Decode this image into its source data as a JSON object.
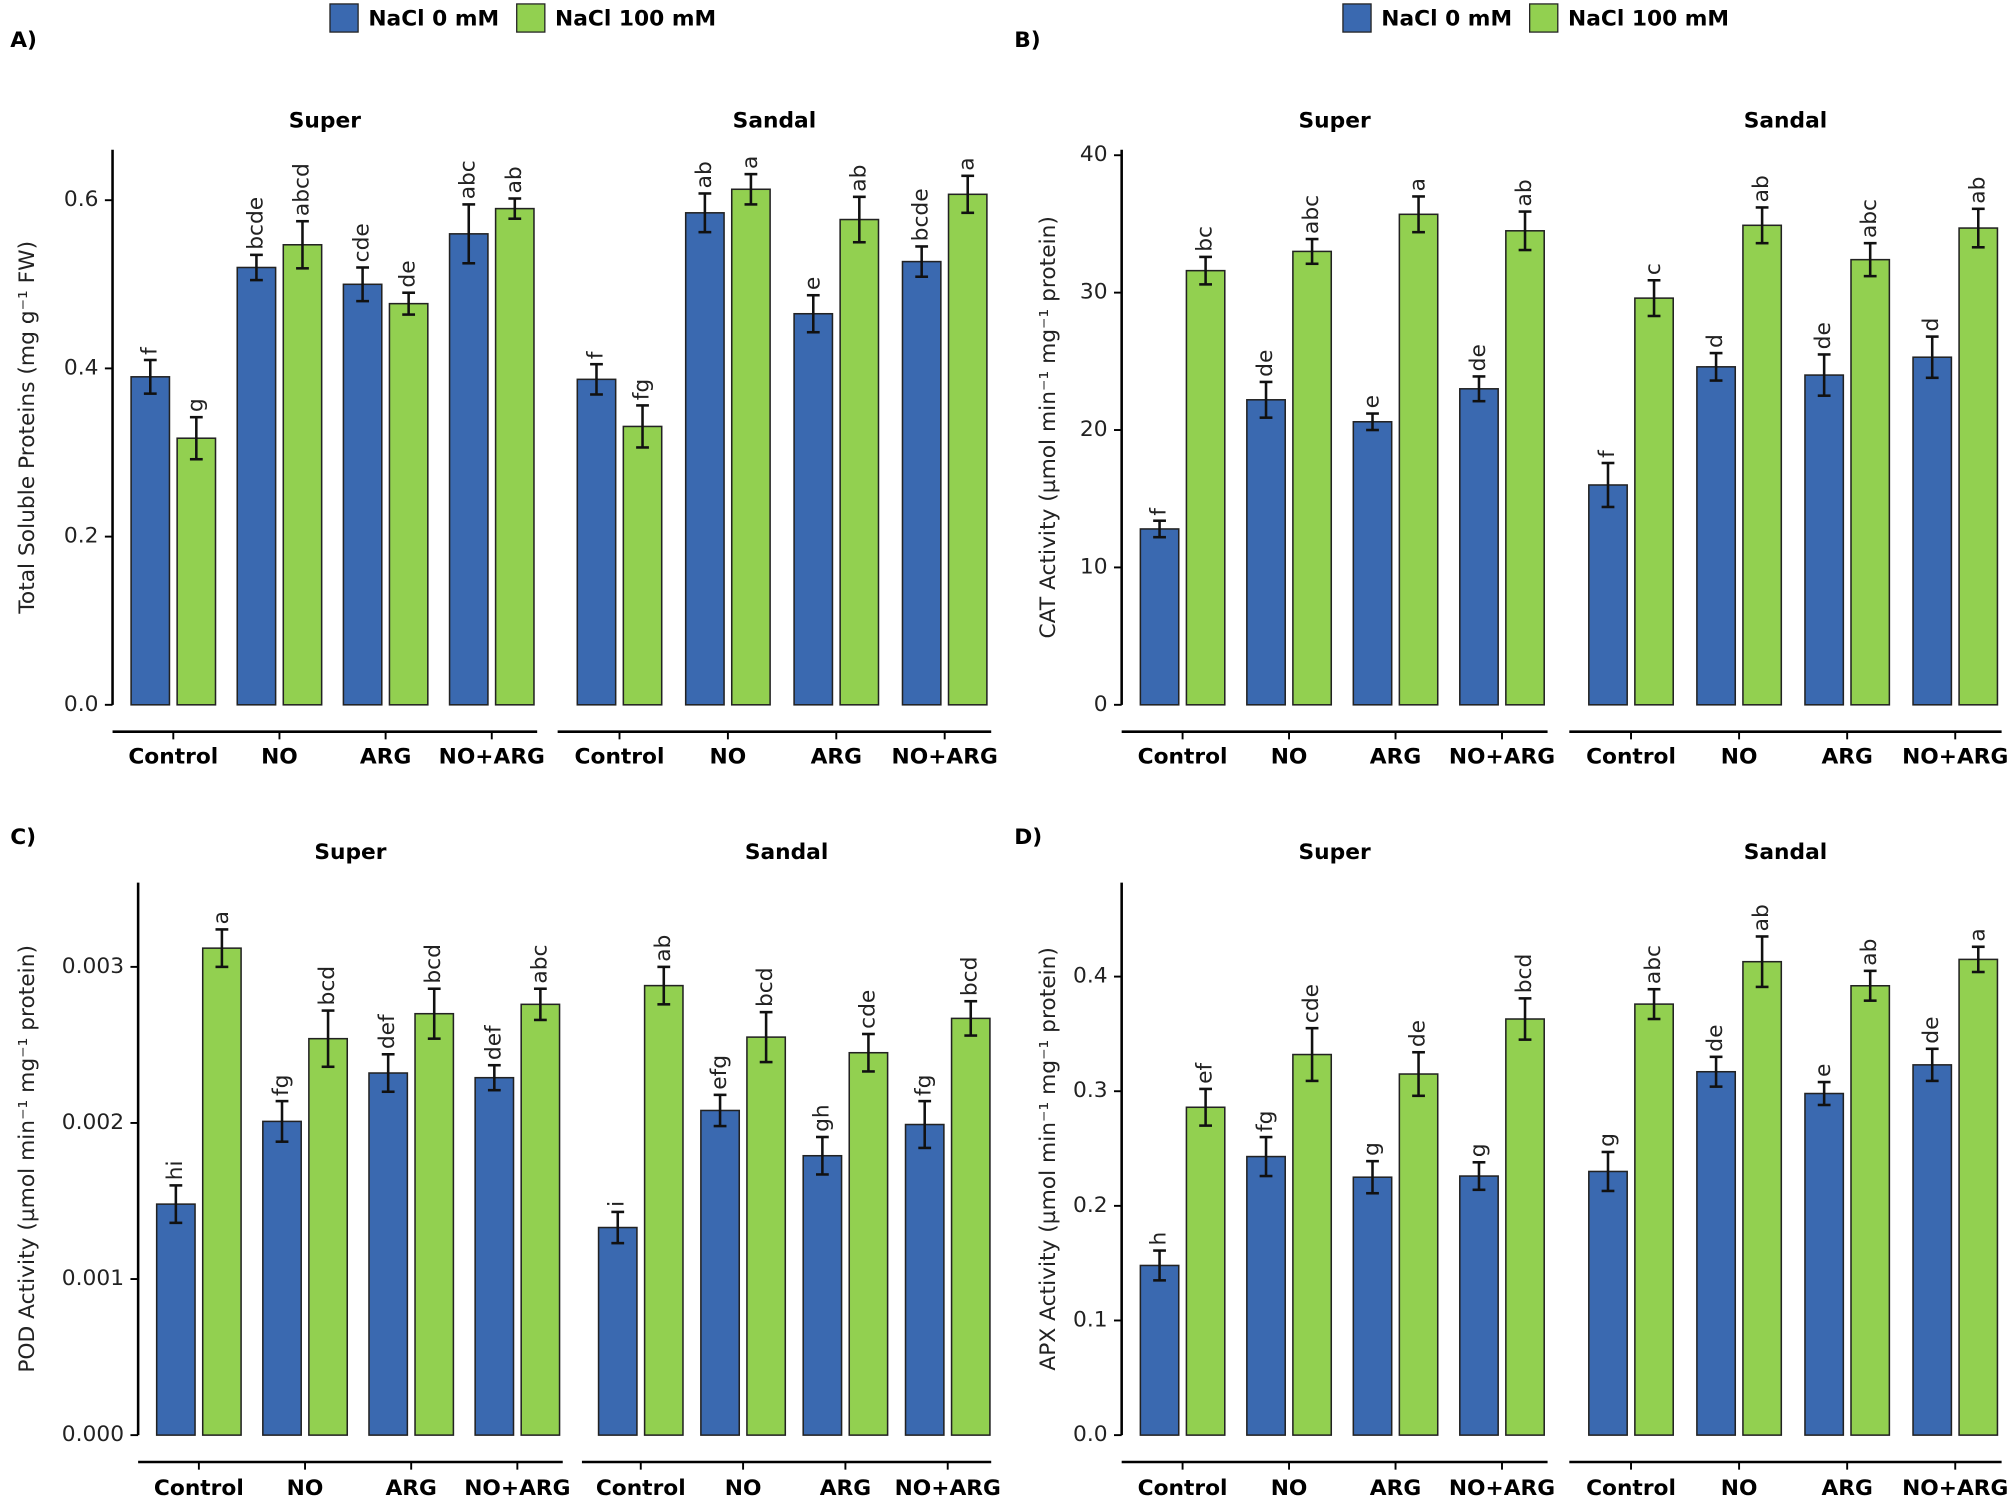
{
  "chart_data": [
    {
      "type": "bar",
      "panel_label": "A)",
      "ylabel": "Total Soluble Proteins (mg g⁻¹ FW)",
      "ylim": [
        0,
        0.66
      ],
      "yticks": [
        {
          "value": 0,
          "label": "0.0"
        },
        0.2,
        0.4,
        0.6
      ],
      "categories": [
        "Control",
        "NO",
        "ARG",
        "NO+ARG"
      ],
      "series": [
        {
          "name": "NaCl 0 mM",
          "color": "#3a69b0"
        },
        {
          "name": "NaCl 100 mM",
          "color": "#92d050"
        }
      ],
      "facets": [
        {
          "title": "Super",
          "values": [
            [
              0.39,
              0.52,
              0.5,
              0.56
            ],
            [
              0.317,
              0.547,
              0.477,
              0.59
            ]
          ],
          "errors": [
            [
              0.02,
              0.015,
              0.02,
              0.035
            ],
            [
              0.025,
              0.028,
              0.013,
              0.012
            ]
          ],
          "letters": [
            [
              "f",
              "bcde",
              "cde",
              "abc"
            ],
            [
              "g",
              "abcd",
              "de",
              "ab"
            ]
          ]
        },
        {
          "title": "Sandal",
          "values": [
            [
              0.387,
              0.585,
              0.465,
              0.527
            ],
            [
              0.331,
              0.613,
              0.577,
              0.607
            ]
          ],
          "errors": [
            [
              0.018,
              0.023,
              0.022,
              0.018
            ],
            [
              0.025,
              0.018,
              0.027,
              0.022
            ]
          ],
          "letters": [
            [
              "f",
              "ab",
              "e",
              "bcde"
            ],
            [
              "fg",
              "a",
              "ab",
              "a"
            ]
          ]
        }
      ]
    },
    {
      "type": "bar",
      "panel_label": "B)",
      "ylabel": "CAT Activity (µmol min⁻¹ mg⁻¹ protein)",
      "ylim": [
        0,
        40.4
      ],
      "yticks": [
        0,
        10,
        20,
        30,
        40
      ],
      "categories": [
        "Control",
        "NO",
        "ARG",
        "NO+ARG"
      ],
      "series": [
        {
          "name": "NaCl 0 mM",
          "color": "#3a69b0"
        },
        {
          "name": "NaCl 100 mM",
          "color": "#92d050"
        }
      ],
      "facets": [
        {
          "title": "Super",
          "values": [
            [
              12.8,
              22.2,
              20.6,
              23.0
            ],
            [
              31.6,
              33.0,
              35.7,
              34.5
            ]
          ],
          "errors": [
            [
              0.6,
              1.3,
              0.6,
              0.9
            ],
            [
              1.0,
              0.9,
              1.3,
              1.4
            ]
          ],
          "letters": [
            [
              "f",
              "de",
              "e",
              "de"
            ],
            [
              "bc",
              "abc",
              "a",
              "ab"
            ]
          ]
        },
        {
          "title": "Sandal",
          "values": [
            [
              16.0,
              24.6,
              24.0,
              25.3
            ],
            [
              29.6,
              34.9,
              32.4,
              34.7
            ]
          ],
          "errors": [
            [
              1.6,
              1.0,
              1.5,
              1.5
            ],
            [
              1.3,
              1.3,
              1.2,
              1.4
            ]
          ],
          "letters": [
            [
              "f",
              "d",
              "de",
              "d"
            ],
            [
              "c",
              "ab",
              "abc",
              "ab"
            ]
          ]
        }
      ]
    },
    {
      "type": "bar",
      "panel_label": "C)",
      "ylabel": "POD Activity (µmol min⁻¹ mg⁻¹ protein)",
      "ylim": [
        0,
        0.00354
      ],
      "yticks": [
        {
          "value": 0,
          "label": "0.000"
        },
        0.001,
        0.002,
        0.003
      ],
      "categories": [
        "Control",
        "NO",
        "ARG",
        "NO+ARG"
      ],
      "series": [
        {
          "color": "#3a69b0"
        },
        {
          "color": "#92d050"
        }
      ],
      "facets": [
        {
          "title": "Super",
          "values": [
            [
              0.00148,
              0.00201,
              0.00232,
              0.00229
            ],
            [
              0.00312,
              0.00254,
              0.0027,
              0.00276
            ]
          ],
          "errors": [
            [
              0.00012,
              0.00013,
              0.00012,
              8e-05
            ],
            [
              0.00012,
              0.00018,
              0.00016,
              0.0001
            ]
          ],
          "letters": [
            [
              "hi",
              "fg",
              "def",
              "def"
            ],
            [
              "a",
              "bcd",
              "bcd",
              "abc"
            ]
          ]
        },
        {
          "title": "Sandal",
          "values": [
            [
              0.00133,
              0.00208,
              0.00179,
              0.00199
            ],
            [
              0.00288,
              0.00255,
              0.00245,
              0.00267
            ]
          ],
          "errors": [
            [
              0.0001,
              0.0001,
              0.00012,
              0.00015
            ],
            [
              0.00012,
              0.00016,
              0.00012,
              0.00011
            ]
          ],
          "letters": [
            [
              "i",
              "efg",
              "gh",
              "fg"
            ],
            [
              "ab",
              "bcd",
              "cde",
              "bcd"
            ]
          ]
        }
      ]
    },
    {
      "type": "bar",
      "panel_label": "D)",
      "ylabel": "APX Activity (µmol min⁻¹ mg⁻¹ protein)",
      "ylim": [
        0,
        0.482
      ],
      "yticks": [
        {
          "value": 0,
          "label": "0.0"
        },
        0.1,
        0.2,
        0.3,
        0.4
      ],
      "categories": [
        "Control",
        "NO",
        "ARG",
        "NO+ARG"
      ],
      "series": [
        {
          "color": "#3a69b0"
        },
        {
          "color": "#92d050"
        }
      ],
      "facets": [
        {
          "title": "Super",
          "values": [
            [
              0.148,
              0.243,
              0.225,
              0.226
            ],
            [
              0.286,
              0.332,
              0.315,
              0.363
            ]
          ],
          "errors": [
            [
              0.013,
              0.017,
              0.014,
              0.012
            ],
            [
              0.016,
              0.023,
              0.019,
              0.018
            ]
          ],
          "letters": [
            [
              "h",
              "fg",
              "g",
              "g"
            ],
            [
              "ef",
              "cde",
              "de",
              "bcd"
            ]
          ]
        },
        {
          "title": "Sandal",
          "values": [
            [
              0.23,
              0.317,
              0.298,
              0.323
            ],
            [
              0.376,
              0.413,
              0.392,
              0.415
            ]
          ],
          "errors": [
            [
              0.017,
              0.013,
              0.01,
              0.014
            ],
            [
              0.013,
              0.022,
              0.013,
              0.011
            ]
          ],
          "letters": [
            [
              "g",
              "de",
              "e",
              "de"
            ],
            [
              "abc",
              "ab",
              "ab",
              "a"
            ]
          ]
        }
      ]
    }
  ]
}
